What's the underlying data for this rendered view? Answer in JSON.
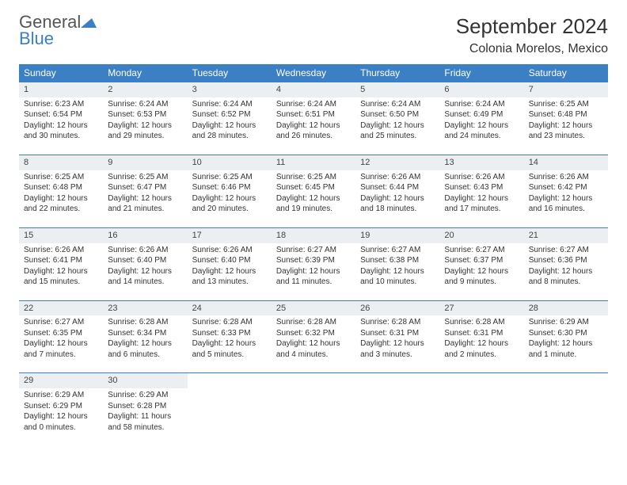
{
  "logo": {
    "word1": "General",
    "word2": "Blue"
  },
  "title": "September 2024",
  "subtitle": "Colonia Morelos, Mexico",
  "colors": {
    "header_bg": "#3b7fc4",
    "header_text": "#ffffff",
    "daynum_bg": "#eceff1",
    "row_divider": "#3b7fc4",
    "logo_gray": "#555555",
    "logo_blue": "#3b7fc4",
    "body_text": "#333333",
    "page_bg": "#ffffff"
  },
  "typography": {
    "title_fontsize": 26,
    "subtitle_fontsize": 16,
    "dayheader_fontsize": 12,
    "daynum_fontsize": 11,
    "cell_fontsize": 10
  },
  "day_headers": [
    "Sunday",
    "Monday",
    "Tuesday",
    "Wednesday",
    "Thursday",
    "Friday",
    "Saturday"
  ],
  "days": [
    {
      "n": "1",
      "sunrise": "Sunrise: 6:23 AM",
      "sunset": "Sunset: 6:54 PM",
      "daylight": "Daylight: 12 hours and 30 minutes."
    },
    {
      "n": "2",
      "sunrise": "Sunrise: 6:24 AM",
      "sunset": "Sunset: 6:53 PM",
      "daylight": "Daylight: 12 hours and 29 minutes."
    },
    {
      "n": "3",
      "sunrise": "Sunrise: 6:24 AM",
      "sunset": "Sunset: 6:52 PM",
      "daylight": "Daylight: 12 hours and 28 minutes."
    },
    {
      "n": "4",
      "sunrise": "Sunrise: 6:24 AM",
      "sunset": "Sunset: 6:51 PM",
      "daylight": "Daylight: 12 hours and 26 minutes."
    },
    {
      "n": "5",
      "sunrise": "Sunrise: 6:24 AM",
      "sunset": "Sunset: 6:50 PM",
      "daylight": "Daylight: 12 hours and 25 minutes."
    },
    {
      "n": "6",
      "sunrise": "Sunrise: 6:24 AM",
      "sunset": "Sunset: 6:49 PM",
      "daylight": "Daylight: 12 hours and 24 minutes."
    },
    {
      "n": "7",
      "sunrise": "Sunrise: 6:25 AM",
      "sunset": "Sunset: 6:48 PM",
      "daylight": "Daylight: 12 hours and 23 minutes."
    },
    {
      "n": "8",
      "sunrise": "Sunrise: 6:25 AM",
      "sunset": "Sunset: 6:48 PM",
      "daylight": "Daylight: 12 hours and 22 minutes."
    },
    {
      "n": "9",
      "sunrise": "Sunrise: 6:25 AM",
      "sunset": "Sunset: 6:47 PM",
      "daylight": "Daylight: 12 hours and 21 minutes."
    },
    {
      "n": "10",
      "sunrise": "Sunrise: 6:25 AM",
      "sunset": "Sunset: 6:46 PM",
      "daylight": "Daylight: 12 hours and 20 minutes."
    },
    {
      "n": "11",
      "sunrise": "Sunrise: 6:25 AM",
      "sunset": "Sunset: 6:45 PM",
      "daylight": "Daylight: 12 hours and 19 minutes."
    },
    {
      "n": "12",
      "sunrise": "Sunrise: 6:26 AM",
      "sunset": "Sunset: 6:44 PM",
      "daylight": "Daylight: 12 hours and 18 minutes."
    },
    {
      "n": "13",
      "sunrise": "Sunrise: 6:26 AM",
      "sunset": "Sunset: 6:43 PM",
      "daylight": "Daylight: 12 hours and 17 minutes."
    },
    {
      "n": "14",
      "sunrise": "Sunrise: 6:26 AM",
      "sunset": "Sunset: 6:42 PM",
      "daylight": "Daylight: 12 hours and 16 minutes."
    },
    {
      "n": "15",
      "sunrise": "Sunrise: 6:26 AM",
      "sunset": "Sunset: 6:41 PM",
      "daylight": "Daylight: 12 hours and 15 minutes."
    },
    {
      "n": "16",
      "sunrise": "Sunrise: 6:26 AM",
      "sunset": "Sunset: 6:40 PM",
      "daylight": "Daylight: 12 hours and 14 minutes."
    },
    {
      "n": "17",
      "sunrise": "Sunrise: 6:26 AM",
      "sunset": "Sunset: 6:40 PM",
      "daylight": "Daylight: 12 hours and 13 minutes."
    },
    {
      "n": "18",
      "sunrise": "Sunrise: 6:27 AM",
      "sunset": "Sunset: 6:39 PM",
      "daylight": "Daylight: 12 hours and 11 minutes."
    },
    {
      "n": "19",
      "sunrise": "Sunrise: 6:27 AM",
      "sunset": "Sunset: 6:38 PM",
      "daylight": "Daylight: 12 hours and 10 minutes."
    },
    {
      "n": "20",
      "sunrise": "Sunrise: 6:27 AM",
      "sunset": "Sunset: 6:37 PM",
      "daylight": "Daylight: 12 hours and 9 minutes."
    },
    {
      "n": "21",
      "sunrise": "Sunrise: 6:27 AM",
      "sunset": "Sunset: 6:36 PM",
      "daylight": "Daylight: 12 hours and 8 minutes."
    },
    {
      "n": "22",
      "sunrise": "Sunrise: 6:27 AM",
      "sunset": "Sunset: 6:35 PM",
      "daylight": "Daylight: 12 hours and 7 minutes."
    },
    {
      "n": "23",
      "sunrise": "Sunrise: 6:28 AM",
      "sunset": "Sunset: 6:34 PM",
      "daylight": "Daylight: 12 hours and 6 minutes."
    },
    {
      "n": "24",
      "sunrise": "Sunrise: 6:28 AM",
      "sunset": "Sunset: 6:33 PM",
      "daylight": "Daylight: 12 hours and 5 minutes."
    },
    {
      "n": "25",
      "sunrise": "Sunrise: 6:28 AM",
      "sunset": "Sunset: 6:32 PM",
      "daylight": "Daylight: 12 hours and 4 minutes."
    },
    {
      "n": "26",
      "sunrise": "Sunrise: 6:28 AM",
      "sunset": "Sunset: 6:31 PM",
      "daylight": "Daylight: 12 hours and 3 minutes."
    },
    {
      "n": "27",
      "sunrise": "Sunrise: 6:28 AM",
      "sunset": "Sunset: 6:31 PM",
      "daylight": "Daylight: 12 hours and 2 minutes."
    },
    {
      "n": "28",
      "sunrise": "Sunrise: 6:29 AM",
      "sunset": "Sunset: 6:30 PM",
      "daylight": "Daylight: 12 hours and 1 minute."
    },
    {
      "n": "29",
      "sunrise": "Sunrise: 6:29 AM",
      "sunset": "Sunset: 6:29 PM",
      "daylight": "Daylight: 12 hours and 0 minutes."
    },
    {
      "n": "30",
      "sunrise": "Sunrise: 6:29 AM",
      "sunset": "Sunset: 6:28 PM",
      "daylight": "Daylight: 11 hours and 58 minutes."
    }
  ]
}
